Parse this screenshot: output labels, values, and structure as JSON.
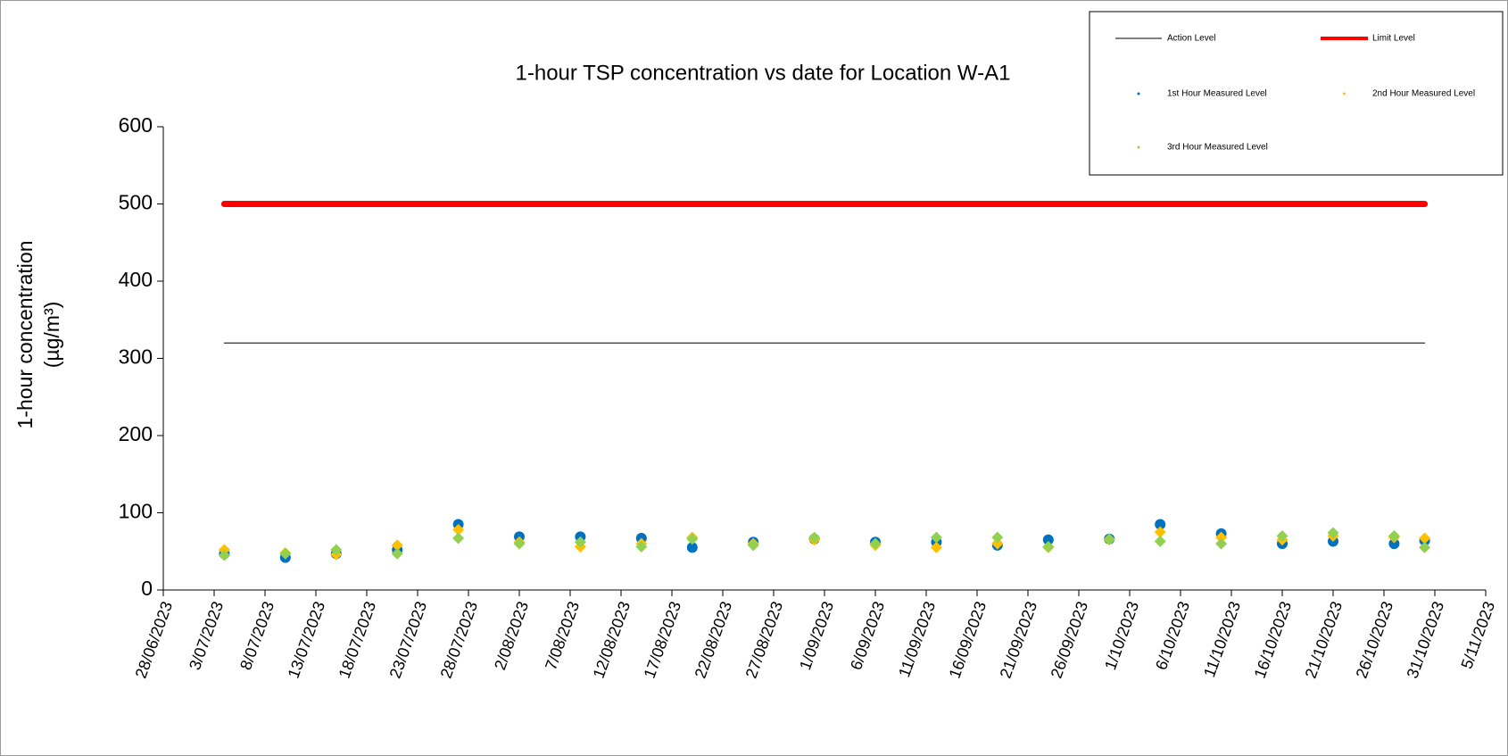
{
  "chart_data": {
    "type": "scatter",
    "title": "1-hour TSP concentration vs date for Location W-A1",
    "ylabel": [
      "1-hour concentration",
      "(µg/m³)"
    ],
    "xlim": [
      "28/06/2023",
      "5/11/2023"
    ],
    "xticks": [
      "28/06/2023",
      "3/07/2023",
      "8/07/2023",
      "13/07/2023",
      "18/07/2023",
      "23/07/2023",
      "28/07/2023",
      "2/08/2023",
      "7/08/2023",
      "12/08/2023",
      "17/08/2023",
      "22/08/2023",
      "27/08/2023",
      "1/09/2023",
      "6/09/2023",
      "11/09/2023",
      "16/09/2023",
      "21/09/2023",
      "26/09/2023",
      "1/10/2023",
      "6/10/2023",
      "11/10/2023",
      "16/10/2023",
      "21/10/2023",
      "26/10/2023",
      "31/10/2023",
      "5/11/2023"
    ],
    "ylim": [
      0,
      600
    ],
    "yticks": [
      0,
      100,
      200,
      300,
      400,
      500,
      600
    ],
    "legend": "upper right",
    "series": [
      {
        "name": "Action Level",
        "color": "#000000",
        "style": "line",
        "width": 1,
        "x": [
          "4/07/2023",
          "30/10/2023"
        ],
        "values": [
          320,
          320
        ]
      },
      {
        "name": "Limit Level",
        "color": "#ff0000",
        "style": "line",
        "width": 7,
        "x": [
          "4/07/2023",
          "30/10/2023"
        ],
        "values": [
          500,
          500
        ]
      },
      {
        "name": "1st Hour Measured Level",
        "color": "#0070c0",
        "style": "circle",
        "x": [
          "4/07/2023",
          "10/07/2023",
          "15/07/2023",
          "21/07/2023",
          "27/07/2023",
          "2/08/2023",
          "8/08/2023",
          "14/08/2023",
          "19/08/2023",
          "25/08/2023",
          "31/08/2023",
          "6/09/2023",
          "12/09/2023",
          "18/09/2023",
          "23/09/2023",
          "29/09/2023",
          "4/10/2023",
          "10/10/2023",
          "16/10/2023",
          "21/10/2023",
          "27/10/2023",
          "30/10/2023"
        ],
        "values": [
          47,
          42,
          47,
          52,
          85,
          69,
          69,
          67,
          55,
          62,
          66,
          62,
          62,
          58,
          65,
          66,
          85,
          73,
          60,
          63,
          60,
          64
        ]
      },
      {
        "name": "2nd Hour Measured Level",
        "color": "#ffc000",
        "style": "diamond",
        "x": [
          "4/07/2023",
          "10/07/2023",
          "15/07/2023",
          "21/07/2023",
          "27/07/2023",
          "2/08/2023",
          "8/08/2023",
          "14/08/2023",
          "19/08/2023",
          "25/08/2023",
          "31/08/2023",
          "6/09/2023",
          "12/09/2023",
          "18/09/2023",
          "23/09/2023",
          "29/09/2023",
          "4/10/2023",
          "10/10/2023",
          "16/10/2023",
          "21/10/2023",
          "27/10/2023",
          "30/10/2023"
        ],
        "values": [
          52,
          48,
          46,
          58,
          78,
          62,
          56,
          60,
          68,
          60,
          65,
          58,
          55,
          60,
          55,
          65,
          75,
          68,
          65,
          70,
          68,
          67
        ]
      },
      {
        "name": "3rd Hour Measured Level",
        "color": "#92d050",
        "style": "diamond",
        "x": [
          "4/07/2023",
          "10/07/2023",
          "15/07/2023",
          "21/07/2023",
          "27/07/2023",
          "2/08/2023",
          "8/08/2023",
          "14/08/2023",
          "19/08/2023",
          "25/08/2023",
          "31/08/2023",
          "6/09/2023",
          "12/09/2023",
          "18/09/2023",
          "23/09/2023",
          "29/09/2023",
          "4/10/2023",
          "10/10/2023",
          "16/10/2023",
          "21/10/2023",
          "27/10/2023",
          "30/10/2023"
        ],
        "values": [
          45,
          47,
          52,
          47,
          67,
          60,
          62,
          56,
          66,
          58,
          68,
          60,
          68,
          68,
          56,
          66,
          63,
          60,
          70,
          74,
          70,
          55
        ]
      }
    ]
  }
}
